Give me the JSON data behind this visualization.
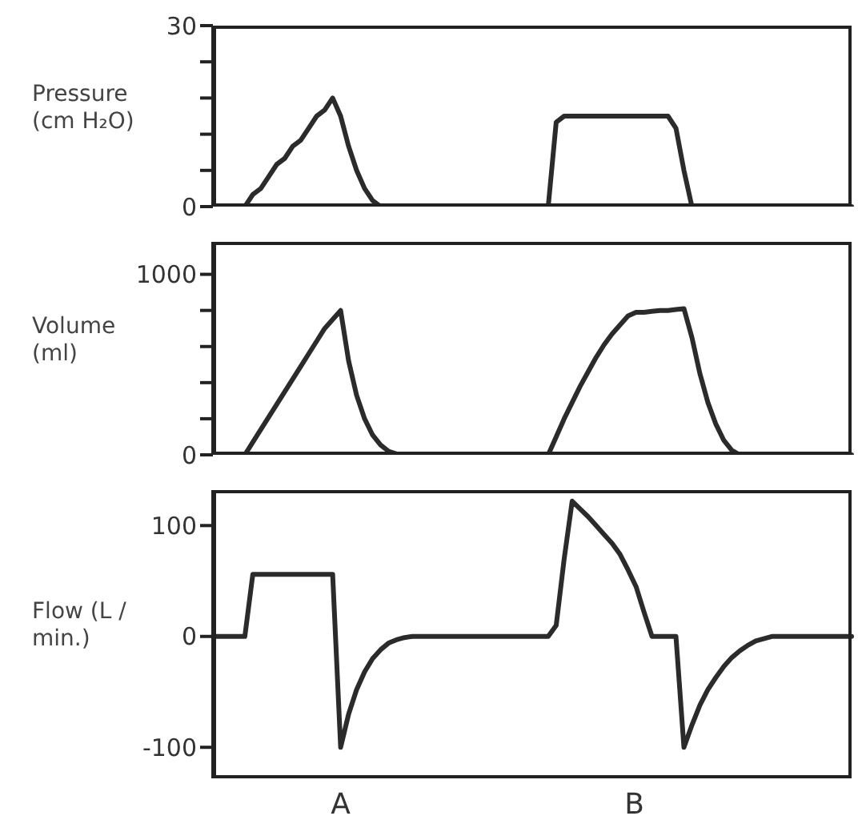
{
  "chart_data": [
    {
      "type": "line",
      "ylabel": "Pressure (cm H₂O)",
      "color": "#2b2b2b",
      "tick_labels": "y",
      "ylim": [
        0,
        30
      ],
      "yticks": [
        0,
        {
          "value": 6,
          "label": null
        },
        {
          "value": 12,
          "label": null
        },
        {
          "value": 18,
          "label": null
        },
        {
          "value": 24,
          "label": null
        },
        30
      ],
      "categories": [
        null,
        null,
        null,
        null,
        null,
        null,
        null,
        null,
        null,
        null,
        null,
        null,
        null,
        null,
        null,
        null,
        null,
        null,
        null,
        null,
        null,
        null,
        null,
        null,
        null,
        null,
        null,
        null,
        null,
        null,
        null,
        null,
        null,
        null,
        null,
        null,
        null,
        null,
        null,
        null,
        null,
        null,
        null,
        null,
        null,
        null,
        null,
        null,
        null,
        null,
        null,
        null,
        null,
        null,
        null,
        null,
        null,
        null,
        null,
        null,
        null,
        null,
        null,
        null,
        null,
        null,
        null,
        null,
        null,
        null,
        null,
        null,
        null,
        null,
        null,
        null,
        null,
        null,
        null,
        null,
        null
      ],
      "values": [
        0,
        0,
        0,
        0,
        0,
        2,
        3,
        5,
        7,
        8,
        10,
        11,
        13,
        15,
        16,
        18,
        15,
        10,
        6,
        3,
        1,
        0,
        0,
        0,
        0,
        0,
        0,
        0,
        0,
        0,
        0,
        0,
        0,
        0,
        0,
        0,
        0,
        0,
        0,
        0,
        0,
        0,
        0,
        14,
        15,
        15,
        15,
        15,
        15,
        15,
        15,
        15,
        15,
        15,
        15,
        15,
        15,
        15,
        13,
        6,
        0,
        0,
        0,
        0,
        0,
        0,
        0,
        0,
        0,
        0,
        0,
        0,
        0,
        0,
        0,
        0,
        0,
        0,
        0,
        0,
        0
      ]
    },
    {
      "type": "line",
      "ylabel": "Volume (ml)",
      "color": "#2b2b2b",
      "tick_labels": "y",
      "ylim": [
        0,
        1180
      ],
      "yticks": [
        0,
        {
          "value": 200,
          "label": null
        },
        {
          "value": 400,
          "label": null
        },
        {
          "value": 600,
          "label": null
        },
        {
          "value": 800,
          "label": null
        },
        1000
      ],
      "categories": [
        null,
        null,
        null,
        null,
        null,
        null,
        null,
        null,
        null,
        null,
        null,
        null,
        null,
        null,
        null,
        null,
        null,
        null,
        null,
        null,
        null,
        null,
        null,
        null,
        null,
        null,
        null,
        null,
        null,
        null,
        null,
        null,
        null,
        null,
        null,
        null,
        null,
        null,
        null,
        null,
        null,
        null,
        null,
        null,
        null,
        null,
        null,
        null,
        null,
        null,
        null,
        null,
        null,
        null,
        null,
        null,
        null,
        null,
        null,
        null,
        null,
        null,
        null,
        null,
        null,
        null,
        null,
        null,
        null,
        null,
        null,
        null,
        null,
        null,
        null,
        null,
        null,
        null,
        null,
        null,
        null
      ],
      "values": [
        0,
        0,
        0,
        0,
        0,
        70,
        140,
        210,
        280,
        350,
        420,
        490,
        560,
        630,
        700,
        750,
        800,
        520,
        330,
        200,
        110,
        55,
        20,
        5,
        0,
        0,
        0,
        0,
        0,
        0,
        0,
        0,
        0,
        0,
        0,
        0,
        0,
        0,
        0,
        0,
        0,
        0,
        0,
        100,
        200,
        290,
        380,
        460,
        540,
        610,
        670,
        720,
        770,
        790,
        790,
        795,
        800,
        800,
        805,
        810,
        650,
        450,
        290,
        170,
        80,
        25,
        0,
        0,
        0,
        0,
        0,
        0,
        0,
        0,
        0,
        0,
        0,
        0,
        0,
        0,
        0
      ]
    },
    {
      "type": "line",
      "ylabel": "Flow (L / min.)",
      "color": "#2b2b2b",
      "tick_labels": "y",
      "ylim": [
        -128,
        132
      ],
      "yticks": [
        -100,
        0,
        100
      ],
      "annotations": [
        "A",
        "B"
      ],
      "categories": [
        null,
        null,
        null,
        null,
        null,
        null,
        null,
        null,
        null,
        null,
        null,
        null,
        null,
        null,
        null,
        null,
        null,
        null,
        null,
        null,
        null,
        null,
        null,
        null,
        null,
        null,
        null,
        null,
        null,
        null,
        null,
        null,
        null,
        null,
        null,
        null,
        null,
        null,
        null,
        null,
        null,
        null,
        null,
        null,
        null,
        null,
        null,
        null,
        null,
        null,
        null,
        null,
        null,
        null,
        null,
        null,
        null,
        null,
        null,
        null,
        null,
        null,
        null,
        null,
        null,
        null,
        null,
        null,
        null,
        null,
        null,
        null,
        null,
        null,
        null,
        null,
        null,
        null,
        null,
        null,
        null
      ],
      "values": [
        0,
        0,
        0,
        0,
        0,
        56,
        56,
        56,
        56,
        56,
        56,
        56,
        56,
        56,
        56,
        56,
        -100,
        -70,
        -48,
        -32,
        -20,
        -12,
        -6,
        -3,
        -1,
        0,
        0,
        0,
        0,
        0,
        0,
        0,
        0,
        0,
        0,
        0,
        0,
        0,
        0,
        0,
        0,
        0,
        0,
        10,
        70,
        122,
        115,
        108,
        100,
        92,
        84,
        74,
        60,
        45,
        22,
        0,
        0,
        0,
        0,
        -100,
        -80,
        -62,
        -48,
        -37,
        -27,
        -19,
        -13,
        -8,
        -4,
        -2,
        0,
        0,
        0,
        0,
        0,
        0,
        0,
        0,
        0,
        0,
        0
      ]
    }
  ]
}
